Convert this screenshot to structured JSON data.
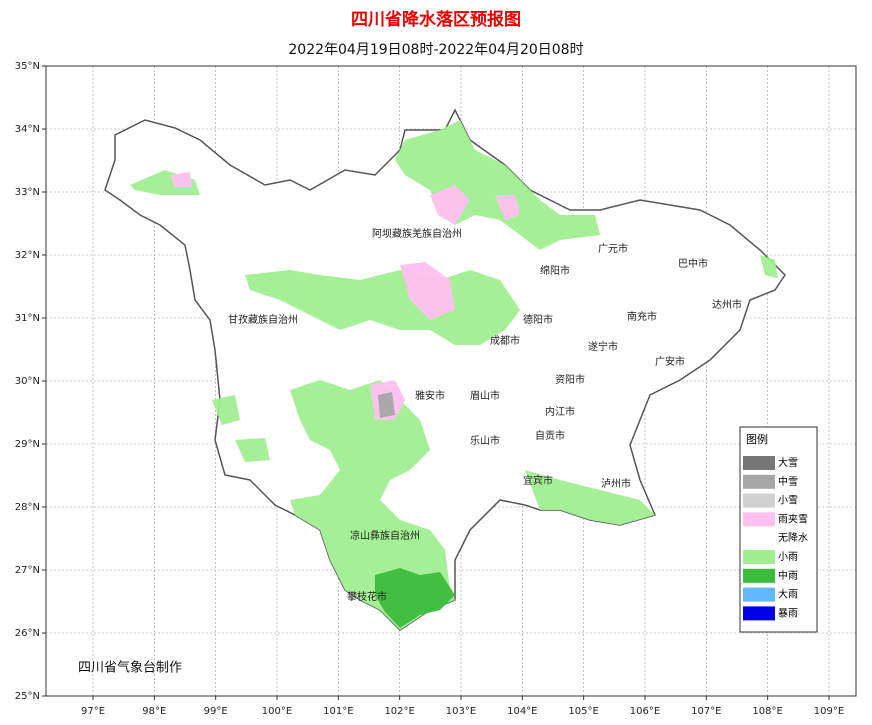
{
  "title": "四川省降水落区预报图",
  "subtitle": "2022年04月19日08时-2022年04月20日08时",
  "lon_ticks": [
    {
      "value": 97,
      "label": "97°E"
    },
    {
      "value": 98,
      "label": "98°E"
    },
    {
      "value": 99,
      "label": "99°E"
    },
    {
      "value": 100,
      "label": "100°E"
    },
    {
      "value": 101,
      "label": "101°E"
    },
    {
      "value": 102,
      "label": "102°E"
    },
    {
      "value": 103,
      "label": "103°E"
    },
    {
      "value": 104,
      "label": "104°E"
    },
    {
      "value": 105,
      "label": "105°E"
    },
    {
      "value": 106,
      "label": "106°E"
    },
    {
      "value": 107,
      "label": "107°E"
    },
    {
      "value": 108,
      "label": "108°E"
    },
    {
      "value": 109,
      "label": "109°E"
    }
  ],
  "lat_ticks": [
    {
      "value": 35,
      "label": "35°N"
    },
    {
      "value": 34,
      "label": "34°N"
    },
    {
      "value": 33,
      "label": "33°N"
    },
    {
      "value": 32,
      "label": "32°N"
    },
    {
      "value": 31,
      "label": "31°N"
    },
    {
      "value": 30,
      "label": "30°N"
    },
    {
      "value": 29,
      "label": "29°N"
    },
    {
      "value": 28,
      "label": "28°N"
    },
    {
      "value": 27,
      "label": "27°N"
    },
    {
      "value": 26,
      "label": "26°N"
    },
    {
      "value": 25,
      "label": "25°N"
    }
  ],
  "cities": [
    "阿坝藏族羌族自治州",
    "甘孜藏族自治州",
    "雅安市",
    "眉山市",
    "乐山市",
    "成都市",
    "德阳市",
    "绵阳市",
    "广元市",
    "巴中市",
    "达州市",
    "南充市",
    "遂宁市",
    "广安市",
    "资阳市",
    "内江市",
    "自贡市",
    "宜宾市",
    "泸州市",
    "凉山彝族自治州",
    "攀枝花市"
  ],
  "legend": {
    "title": "图例",
    "items": [
      {
        "label": "大雪",
        "color": "#777777"
      },
      {
        "label": "中雪",
        "color": "#a6a6a6"
      },
      {
        "label": "小雪",
        "color": "#d0d0d0"
      },
      {
        "label": "雨夹雪",
        "color": "#ffc0f0"
      },
      {
        "label": "无降水",
        "color": "#ffffff"
      },
      {
        "label": "小雨",
        "color": "#a0ee90"
      },
      {
        "label": "中雨",
        "color": "#3cbc3c"
      },
      {
        "label": "大雨",
        "color": "#60b8ff"
      },
      {
        "label": "暴雨",
        "color": "#0000e6"
      }
    ]
  },
  "credit": "四川省气象台制作"
}
